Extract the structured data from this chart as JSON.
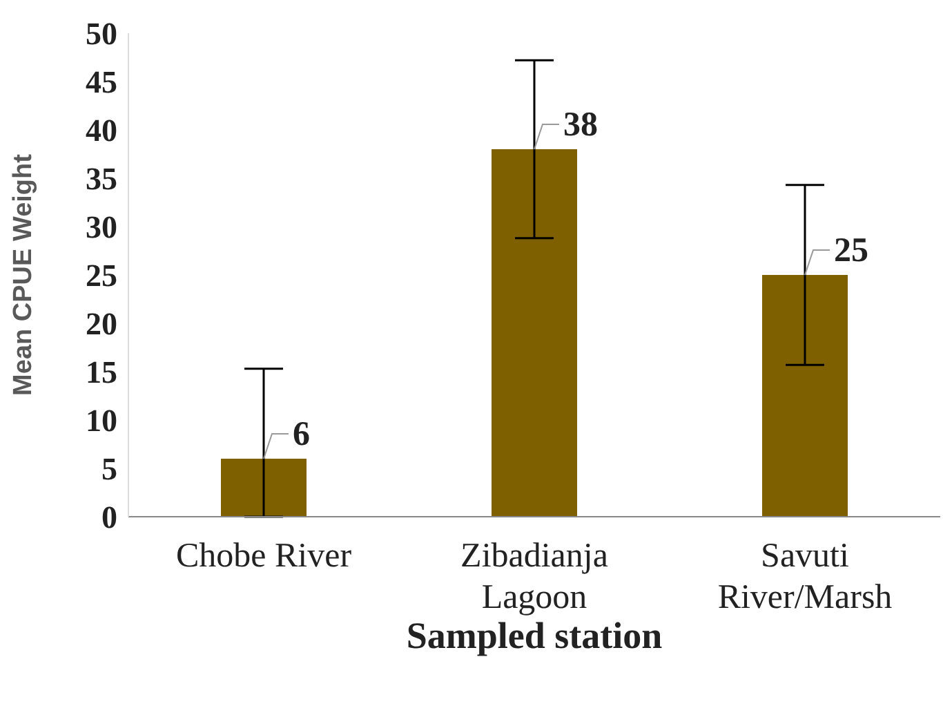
{
  "chart_data": {
    "type": "bar",
    "xlabel": "Sampled station",
    "ylabel": "Mean CPUE Weight",
    "categories": [
      "Chobe River",
      "Zibadianja Lagoon",
      "Savuti River/Marsh"
    ],
    "values": [
      6,
      38,
      25
    ],
    "errors": [
      [
        0,
        15.3
      ],
      [
        28.8,
        47.2
      ],
      [
        15.7,
        34.3
      ]
    ],
    "color": "#7f6000",
    "ylim": [
      0,
      50
    ],
    "yticks": [
      0,
      5,
      10,
      15,
      20,
      25,
      30,
      35,
      40,
      45,
      50
    ],
    "data_labels": true,
    "grid": false,
    "legend": false
  }
}
